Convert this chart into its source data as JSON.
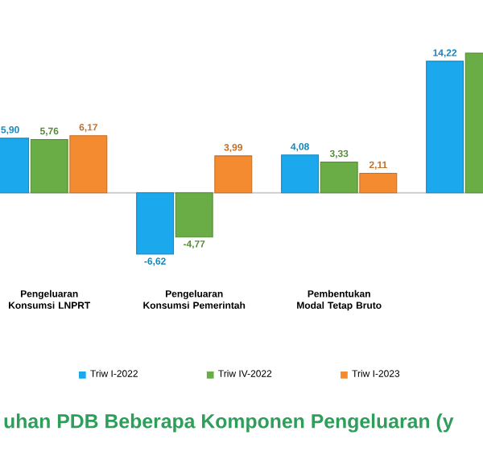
{
  "chart_data": {
    "type": "bar",
    "title": "uhan PDB Beberapa Komponen Pengeluaran (y",
    "categories": [
      "Pengeluaran Konsumsi LNPRT",
      "Pengeluaran Konsumsi Pemerintah",
      "Pembentukan Modal Tetap Bruto",
      null
    ],
    "series": [
      {
        "name": "Triw I-2022",
        "color": "#1ba8ec",
        "values": [
          5.9,
          -6.62,
          4.08,
          14.22
        ],
        "value_labels": [
          "5,90",
          "-6,62",
          "4,08",
          "14,22"
        ]
      },
      {
        "name": "Triw IV-2022",
        "color": "#6aac46",
        "values": [
          5.76,
          -4.77,
          3.33,
          15.1
        ],
        "value_labels": [
          "5,76",
          "-4,77",
          "3,33",
          null
        ]
      },
      {
        "name": "Triw I-2023",
        "color": "#f58b30",
        "values": [
          6.17,
          3.99,
          2.11,
          null
        ],
        "value_labels": [
          "6,17",
          "3,99",
          "2,11",
          null
        ]
      }
    ],
    "legend": "bottom"
  }
}
